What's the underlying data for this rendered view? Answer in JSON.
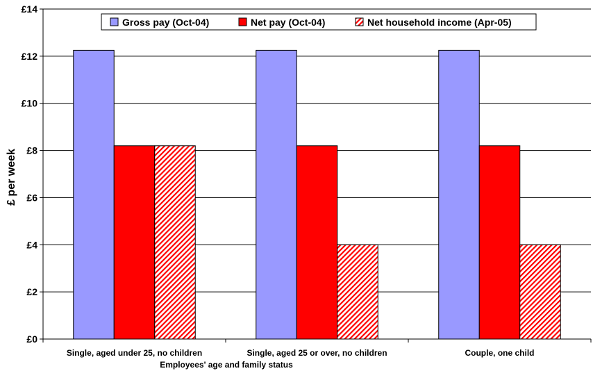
{
  "chart_data": {
    "type": "bar",
    "title": "",
    "xlabel": "Employees' age and family status",
    "ylabel": "£ per week",
    "ylim": [
      0,
      14
    ],
    "yticks": [
      0,
      2,
      4,
      6,
      8,
      10,
      12,
      14
    ],
    "ytick_labels": [
      "£0",
      "£2",
      "£4",
      "£6",
      "£8",
      "£10",
      "£12",
      "£14"
    ],
    "categories": [
      "Single, aged under 25, no children",
      "Single, aged 25 or over, no children",
      "Couple, one child"
    ],
    "series": [
      {
        "name": "Gross pay (Oct-04)",
        "color": "#9999ff",
        "pattern": "solid",
        "values": [
          12.25,
          12.25,
          12.25
        ]
      },
      {
        "name": "Net pay (Oct-04)",
        "color": "#ff0000",
        "pattern": "solid",
        "values": [
          8.2,
          8.2,
          8.2
        ]
      },
      {
        "name": "Net household income (Apr-05)",
        "color": "#ff0000",
        "pattern": "diagonal-hatch",
        "values": [
          8.2,
          4.0,
          4.0
        ]
      }
    ],
    "grid": true,
    "legend_position": "top"
  }
}
